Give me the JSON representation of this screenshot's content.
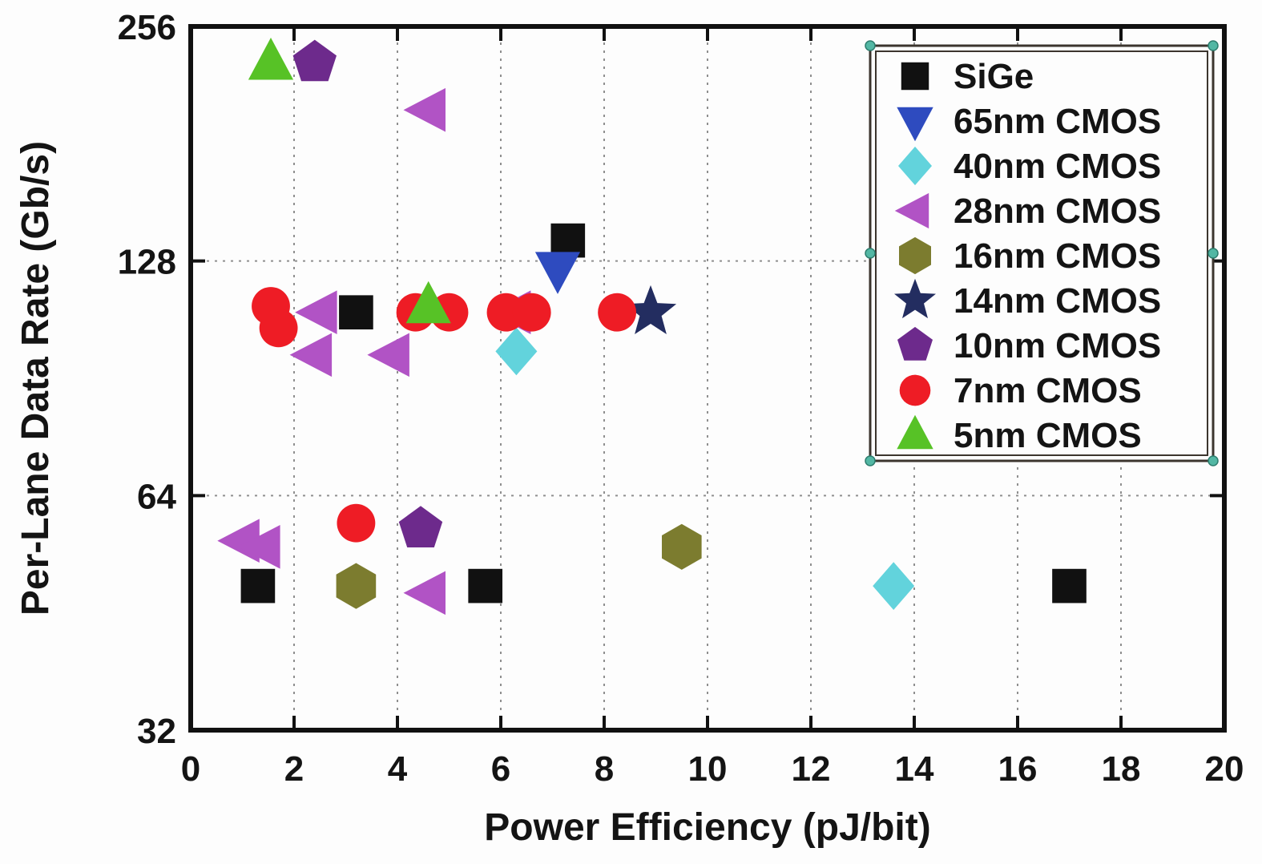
{
  "figure": {
    "description": "Scatter plot of per-lane data rate versus power efficiency for serial links in different process technologies"
  },
  "chart_data": {
    "type": "scatter",
    "title": "",
    "xlabel": "Power Efficiency (pJ/bit)",
    "ylabel": "Per-Lane Data Rate (Gb/s)",
    "xlim": [
      0,
      20
    ],
    "ylim": [
      32,
      256
    ],
    "yscale": "log2",
    "xticks": [
      0,
      2,
      4,
      6,
      8,
      10,
      12,
      14,
      16,
      18,
      20
    ],
    "yticks": [
      32,
      64,
      128,
      256
    ],
    "grid": "dotted",
    "grid_color": "#8f8f8f",
    "frame_color": "#111111",
    "legend_position": "top-right",
    "legend_border_color": "#3c352e",
    "legend_handle_color": "#53b7a4",
    "series": [
      {
        "name": "SiGe",
        "marker": "square",
        "color": "#111111",
        "points": [
          [
            7.3,
            136
          ],
          [
            3.2,
            110
          ],
          [
            1.3,
            49
          ],
          [
            5.7,
            49
          ],
          [
            17.0,
            49
          ]
        ]
      },
      {
        "name": "65nm CMOS",
        "marker": "triangle-down",
        "color": "#2e4bbf",
        "points": [
          [
            7.1,
            125
          ]
        ]
      },
      {
        "name": "40nm CMOS",
        "marker": "diamond",
        "color": "#62d3dc",
        "points": [
          [
            6.3,
            98
          ],
          [
            13.6,
            49
          ]
        ]
      },
      {
        "name": "28nm CMOS",
        "marker": "triangle-left",
        "color": "#b153c5",
        "points": [
          [
            4.6,
            200
          ],
          [
            2.5,
            110
          ],
          [
            2.4,
            97
          ],
          [
            3.9,
            97
          ],
          [
            6.25,
            110
          ],
          [
            1.0,
            56
          ],
          [
            1.4,
            55
          ],
          [
            4.6,
            48
          ]
        ]
      },
      {
        "name": "16nm CMOS",
        "marker": "hexagon",
        "color": "#7c7c2f",
        "points": [
          [
            9.5,
            55
          ],
          [
            3.2,
            49
          ]
        ]
      },
      {
        "name": "14nm CMOS",
        "marker": "star",
        "color": "#232d60",
        "points": [
          [
            8.9,
            110
          ]
        ]
      },
      {
        "name": "10nm CMOS",
        "marker": "pentagon",
        "color": "#6d2a8c",
        "points": [
          [
            2.4,
            230
          ],
          [
            4.45,
            58
          ]
        ]
      },
      {
        "name": "7nm CMOS",
        "marker": "circle",
        "color": "#ee1c25",
        "points": [
          [
            1.55,
            112
          ],
          [
            1.7,
            105
          ],
          [
            4.35,
            110
          ],
          [
            5.0,
            110
          ],
          [
            6.1,
            110
          ],
          [
            6.6,
            110
          ],
          [
            8.25,
            110
          ],
          [
            3.2,
            59
          ]
        ]
      },
      {
        "name": "5nm CMOS",
        "marker": "triangle-up",
        "color": "#57c226",
        "points": [
          [
            1.55,
            230
          ],
          [
            4.6,
            112
          ]
        ]
      }
    ]
  }
}
